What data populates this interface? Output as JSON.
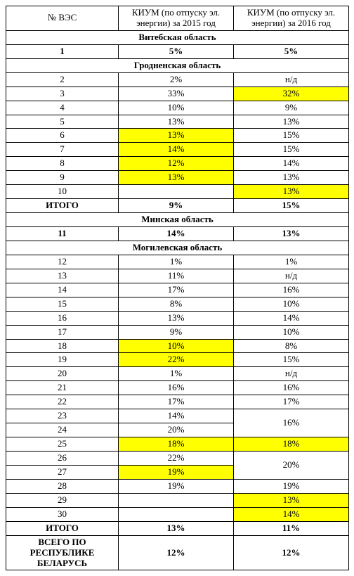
{
  "colors": {
    "highlight": "#ffff00",
    "border": "#000000",
    "bg": "#ffffff"
  },
  "headers": {
    "col1": "№ ВЭС",
    "col2": "КИУМ (по отпуску эл. энергии) за 2015 год",
    "col3": "КИУМ (по отпуску эл. энергии) за 2016 год"
  },
  "sections": {
    "vitebsk": "Витебская область",
    "grodno": "Гродненская область",
    "minsk": "Минская область",
    "mogilev": "Могилевская область"
  },
  "rows": {
    "r1": {
      "n": "1",
      "a": "5%",
      "b": "5%"
    },
    "r2": {
      "n": "2",
      "a": "2%",
      "b": "н/д"
    },
    "r3": {
      "n": "3",
      "a": "33%",
      "b": "32%"
    },
    "r4": {
      "n": "4",
      "a": "10%",
      "b": "9%"
    },
    "r5": {
      "n": "5",
      "a": "13%",
      "b": "13%"
    },
    "r6": {
      "n": "6",
      "a": "13%",
      "b": "15%"
    },
    "r7": {
      "n": "7",
      "a": "14%",
      "b": "15%"
    },
    "r8": {
      "n": "8",
      "a": "12%",
      "b": "14%"
    },
    "r9": {
      "n": "9",
      "a": "13%",
      "b": "13%"
    },
    "r10": {
      "n": "10",
      "a": "",
      "b": "13%"
    },
    "itogo_grodno": {
      "n": "ИТОГО",
      "a": "9%",
      "b": "15%"
    },
    "r11": {
      "n": "11",
      "a": "14%",
      "b": "13%"
    },
    "r12": {
      "n": "12",
      "a": "1%",
      "b": "1%"
    },
    "r13": {
      "n": "13",
      "a": "11%",
      "b": "н/д"
    },
    "r14": {
      "n": "14",
      "a": "17%",
      "b": "16%"
    },
    "r15": {
      "n": "15",
      "a": "8%",
      "b": "10%"
    },
    "r16": {
      "n": "16",
      "a": "13%",
      "b": "14%"
    },
    "r17": {
      "n": "17",
      "a": "9%",
      "b": "10%"
    },
    "r18": {
      "n": "18",
      "a": "10%",
      "b": "8%"
    },
    "r19": {
      "n": "19",
      "a": "22%",
      "b": "15%"
    },
    "r20": {
      "n": "20",
      "a": "1%",
      "b": "н/д"
    },
    "r21": {
      "n": "21",
      "a": "16%",
      "b": "16%"
    },
    "r22": {
      "n": "22",
      "a": "17%",
      "b": "17%"
    },
    "r23": {
      "n": "23",
      "a": "14%"
    },
    "r24": {
      "n": "24",
      "a": "20%"
    },
    "r23_24_b": "16%",
    "r25": {
      "n": "25",
      "a": "18%",
      "b": "18%"
    },
    "r26": {
      "n": "26",
      "a": "22%"
    },
    "r27": {
      "n": "27",
      "a": "19%"
    },
    "r26_27_b": "20%",
    "r28": {
      "n": "28",
      "a": "19%",
      "b": "19%"
    },
    "r29": {
      "n": "29",
      "a": "",
      "b": "13%"
    },
    "r30": {
      "n": "30",
      "a": "",
      "b": "14%"
    },
    "itogo_mogilev": {
      "n": "ИТОГО",
      "a": "13%",
      "b": "11%"
    },
    "total": {
      "n": "ВСЕГО ПО РЕСПУБЛИКЕ БЕЛАРУСЬ",
      "a": "12%",
      "b": "12%"
    }
  }
}
